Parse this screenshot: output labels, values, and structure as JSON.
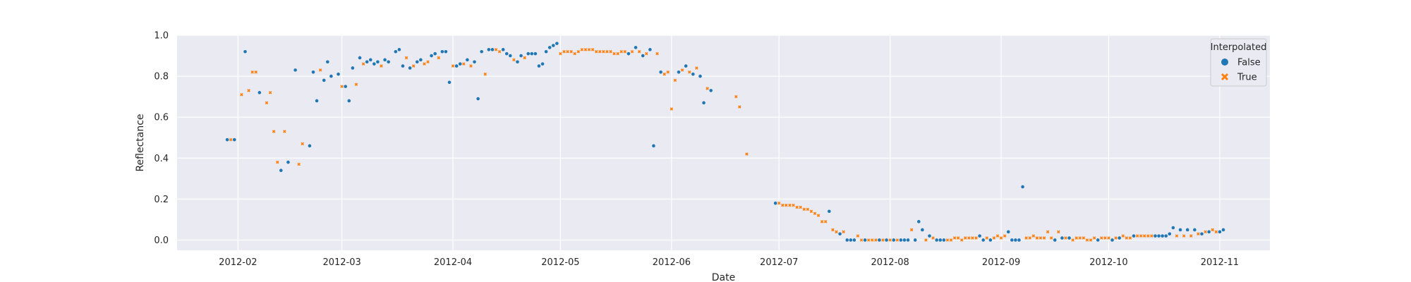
{
  "chart_data": {
    "type": "scatter",
    "title": "",
    "xlabel": "Date",
    "ylabel": "Reflectance",
    "x_axis_type": "date",
    "xlim": [
      "2012-01-15",
      "2012-11-15"
    ],
    "ylim": [
      -0.05,
      1.0
    ],
    "grid": true,
    "background": "#eaeaf2",
    "x_tick_dates": [
      "2012-02-01",
      "2012-03-01",
      "2012-04-01",
      "2012-05-01",
      "2012-06-01",
      "2012-07-01",
      "2012-08-01",
      "2012-09-01",
      "2012-10-01",
      "2012-11-01"
    ],
    "x_tick_labels": [
      "2012-02",
      "2012-03",
      "2012-04",
      "2012-05",
      "2012-06",
      "2012-07",
      "2012-08",
      "2012-09",
      "2012-10",
      "2012-11"
    ],
    "y_ticks": [
      0.0,
      0.2,
      0.4,
      0.6,
      0.8,
      1.0
    ],
    "y_tick_labels": [
      "0.0",
      "0.2",
      "0.4",
      "0.6",
      "0.8",
      "1.0"
    ],
    "legend": {
      "title": "Interpolated",
      "position": "top-right",
      "entries": [
        {
          "label": "False",
          "color": "#1f77b4",
          "marker": "circle"
        },
        {
          "label": "True",
          "color": "#ff7f0e",
          "marker": "x"
        }
      ]
    },
    "series": [
      {
        "name": "False",
        "color": "#1f77b4",
        "marker": "circle",
        "x": [
          "2012-01-29",
          "2012-01-31",
          "2012-02-03",
          "2012-02-07",
          "2012-02-13",
          "2012-02-15",
          "2012-02-17",
          "2012-02-21",
          "2012-02-22",
          "2012-02-23",
          "2012-02-25",
          "2012-02-26",
          "2012-02-27",
          "2012-02-29",
          "2012-03-02",
          "2012-03-03",
          "2012-03-04",
          "2012-03-06",
          "2012-03-08",
          "2012-03-09",
          "2012-03-10",
          "2012-03-11",
          "2012-03-13",
          "2012-03-14",
          "2012-03-16",
          "2012-03-17",
          "2012-03-18",
          "2012-03-20",
          "2012-03-22",
          "2012-03-23",
          "2012-03-26",
          "2012-03-27",
          "2012-03-29",
          "2012-03-30",
          "2012-03-31",
          "2012-04-02",
          "2012-04-03",
          "2012-04-05",
          "2012-04-07",
          "2012-04-08",
          "2012-04-09",
          "2012-04-11",
          "2012-04-12",
          "2012-04-15",
          "2012-04-16",
          "2012-04-17",
          "2012-04-19",
          "2012-04-20",
          "2012-04-22",
          "2012-04-23",
          "2012-04-24",
          "2012-04-25",
          "2012-04-26",
          "2012-04-27",
          "2012-04-28",
          "2012-04-29",
          "2012-04-30",
          "2012-05-20",
          "2012-05-22",
          "2012-05-24",
          "2012-05-26",
          "2012-05-27",
          "2012-05-29",
          "2012-06-03",
          "2012-06-05",
          "2012-06-07",
          "2012-06-09",
          "2012-06-10",
          "2012-06-12",
          "2012-06-30",
          "2012-07-15",
          "2012-07-18",
          "2012-07-20",
          "2012-07-21",
          "2012-07-22",
          "2012-07-25",
          "2012-07-29",
          "2012-07-31",
          "2012-08-02",
          "2012-08-04",
          "2012-08-05",
          "2012-08-06",
          "2012-08-08",
          "2012-08-09",
          "2012-08-10",
          "2012-08-12",
          "2012-08-14",
          "2012-08-15",
          "2012-08-16",
          "2012-08-26",
          "2012-08-27",
          "2012-08-29",
          "2012-09-03",
          "2012-09-04",
          "2012-09-05",
          "2012-09-06",
          "2012-09-07",
          "2012-09-16",
          "2012-09-18",
          "2012-09-20",
          "2012-09-28",
          "2012-10-02",
          "2012-10-04",
          "2012-10-08",
          "2012-10-14",
          "2012-10-15",
          "2012-10-16",
          "2012-10-17",
          "2012-10-18",
          "2012-10-19",
          "2012-10-21",
          "2012-10-23",
          "2012-10-25",
          "2012-10-27",
          "2012-10-29",
          "2012-11-01",
          "2012-11-02"
        ],
        "y": [
          0.49,
          0.49,
          0.92,
          0.72,
          0.34,
          0.38,
          0.83,
          0.46,
          0.82,
          0.68,
          0.78,
          0.87,
          0.8,
          0.81,
          0.75,
          0.68,
          0.84,
          0.89,
          0.87,
          0.88,
          0.86,
          0.87,
          0.88,
          0.87,
          0.92,
          0.93,
          0.85,
          0.84,
          0.87,
          0.88,
          0.9,
          0.91,
          0.92,
          0.92,
          0.77,
          0.85,
          0.86,
          0.88,
          0.87,
          0.69,
          0.92,
          0.93,
          0.93,
          0.93,
          0.91,
          0.9,
          0.87,
          0.9,
          0.91,
          0.91,
          0.91,
          0.85,
          0.86,
          0.92,
          0.94,
          0.95,
          0.96,
          0.91,
          0.94,
          0.9,
          0.93,
          0.46,
          0.82,
          0.82,
          0.85,
          0.81,
          0.8,
          0.67,
          0.73,
          0.18,
          0.14,
          0.03,
          0.0,
          0.0,
          0.0,
          0.0,
          0.0,
          0.0,
          0.0,
          0.0,
          0.0,
          0.0,
          0.0,
          0.09,
          0.05,
          0.02,
          0.0,
          0.0,
          0.0,
          0.02,
          0.0,
          0.0,
          0.04,
          0.0,
          0.0,
          0.0,
          0.26,
          0.0,
          0.01,
          0.01,
          0.0,
          0.0,
          0.01,
          0.02,
          0.02,
          0.02,
          0.02,
          0.02,
          0.03,
          0.06,
          0.05,
          0.05,
          0.05,
          0.03,
          0.04,
          0.04,
          0.05
        ]
      },
      {
        "name": "True",
        "color": "#ff7f0e",
        "marker": "x",
        "x": [
          "2012-01-30",
          "2012-02-02",
          "2012-02-04",
          "2012-02-05",
          "2012-02-06",
          "2012-02-09",
          "2012-02-10",
          "2012-02-11",
          "2012-02-12",
          "2012-02-14",
          "2012-02-18",
          "2012-02-19",
          "2012-02-24",
          "2012-03-01",
          "2012-03-05",
          "2012-03-07",
          "2012-03-12",
          "2012-03-19",
          "2012-03-21",
          "2012-03-24",
          "2012-03-25",
          "2012-03-28",
          "2012-04-01",
          "2012-04-04",
          "2012-04-06",
          "2012-04-10",
          "2012-04-13",
          "2012-04-14",
          "2012-04-18",
          "2012-04-21",
          "2012-05-01",
          "2012-05-02",
          "2012-05-03",
          "2012-05-04",
          "2012-05-05",
          "2012-05-06",
          "2012-05-07",
          "2012-05-08",
          "2012-05-09",
          "2012-05-10",
          "2012-05-11",
          "2012-05-12",
          "2012-05-13",
          "2012-05-14",
          "2012-05-15",
          "2012-05-16",
          "2012-05-17",
          "2012-05-18",
          "2012-05-19",
          "2012-05-21",
          "2012-05-23",
          "2012-05-25",
          "2012-05-28",
          "2012-05-30",
          "2012-05-31",
          "2012-06-01",
          "2012-06-02",
          "2012-06-04",
          "2012-06-06",
          "2012-06-08",
          "2012-06-11",
          "2012-06-19",
          "2012-06-20",
          "2012-06-22",
          "2012-07-01",
          "2012-07-02",
          "2012-07-03",
          "2012-07-04",
          "2012-07-05",
          "2012-07-06",
          "2012-07-07",
          "2012-07-08",
          "2012-07-09",
          "2012-07-10",
          "2012-07-11",
          "2012-07-12",
          "2012-07-13",
          "2012-07-14",
          "2012-07-16",
          "2012-07-17",
          "2012-07-19",
          "2012-07-23",
          "2012-07-24",
          "2012-07-26",
          "2012-07-27",
          "2012-07-28",
          "2012-07-30",
          "2012-08-01",
          "2012-08-03",
          "2012-08-07",
          "2012-08-11",
          "2012-08-13",
          "2012-08-17",
          "2012-08-18",
          "2012-08-19",
          "2012-08-20",
          "2012-08-21",
          "2012-08-22",
          "2012-08-23",
          "2012-08-24",
          "2012-08-25",
          "2012-08-28",
          "2012-08-30",
          "2012-08-31",
          "2012-09-01",
          "2012-09-02",
          "2012-09-08",
          "2012-09-09",
          "2012-09-10",
          "2012-09-11",
          "2012-09-12",
          "2012-09-13",
          "2012-09-14",
          "2012-09-15",
          "2012-09-17",
          "2012-09-19",
          "2012-09-21",
          "2012-09-22",
          "2012-09-23",
          "2012-09-24",
          "2012-09-25",
          "2012-09-26",
          "2012-09-27",
          "2012-09-29",
          "2012-09-30",
          "2012-10-01",
          "2012-10-03",
          "2012-10-05",
          "2012-10-06",
          "2012-10-07",
          "2012-10-09",
          "2012-10-10",
          "2012-10-11",
          "2012-10-12",
          "2012-10-13",
          "2012-10-20",
          "2012-10-22",
          "2012-10-24",
          "2012-10-26",
          "2012-10-28",
          "2012-10-30",
          "2012-10-31"
        ],
        "y": [
          0.49,
          0.71,
          0.73,
          0.82,
          0.82,
          0.67,
          0.72,
          0.53,
          0.38,
          0.53,
          0.37,
          0.47,
          0.83,
          0.75,
          0.76,
          0.86,
          0.85,
          0.89,
          0.85,
          0.86,
          0.87,
          0.89,
          0.85,
          0.86,
          0.85,
          0.81,
          0.93,
          0.92,
          0.88,
          0.89,
          0.91,
          0.92,
          0.92,
          0.92,
          0.91,
          0.92,
          0.93,
          0.93,
          0.93,
          0.93,
          0.92,
          0.92,
          0.92,
          0.92,
          0.92,
          0.91,
          0.91,
          0.92,
          0.92,
          0.92,
          0.92,
          0.91,
          0.91,
          0.81,
          0.82,
          0.64,
          0.78,
          0.83,
          0.82,
          0.84,
          0.74,
          0.7,
          0.65,
          0.42,
          0.18,
          0.17,
          0.17,
          0.17,
          0.17,
          0.16,
          0.16,
          0.15,
          0.15,
          0.14,
          0.13,
          0.12,
          0.09,
          0.09,
          0.05,
          0.04,
          0.04,
          0.02,
          0.0,
          0.0,
          0.0,
          0.0,
          0.0,
          0.0,
          0.0,
          0.05,
          0.0,
          0.01,
          0.0,
          0.0,
          0.01,
          0.01,
          0.0,
          0.01,
          0.01,
          0.01,
          0.01,
          0.01,
          0.01,
          0.02,
          0.01,
          0.02,
          0.01,
          0.01,
          0.02,
          0.01,
          0.01,
          0.01,
          0.04,
          0.01,
          0.04,
          0.01,
          0.0,
          0.01,
          0.01,
          0.01,
          0.0,
          0.0,
          0.01,
          0.01,
          0.01,
          0.01,
          0.01,
          0.02,
          0.01,
          0.01,
          0.02,
          0.02,
          0.02,
          0.02,
          0.02,
          0.02,
          0.02,
          0.02,
          0.03,
          0.04,
          0.05,
          0.04
        ]
      }
    ]
  }
}
